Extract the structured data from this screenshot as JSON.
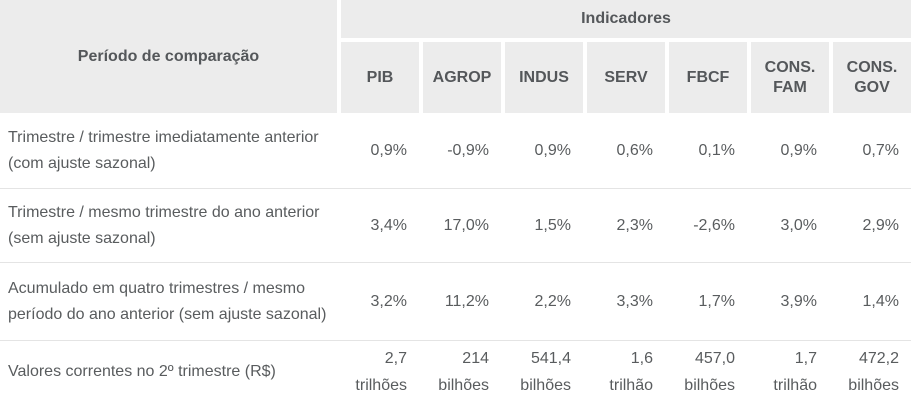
{
  "colors": {
    "header_bg": "#ececec",
    "header_text": "#54575a",
    "body_text": "#595c5e",
    "row_separator": "#e4e4e4",
    "background": "#ffffff"
  },
  "chart_data": {
    "type": "table",
    "title": "Indicadores",
    "row_header": "Período de comparação",
    "columns": [
      "PIB",
      "AGROP",
      "INDUS",
      "SERV",
      "FBCF",
      "CONS. FAM",
      "CONS. GOV"
    ],
    "rows": [
      {
        "label": "Trimestre / trimestre imediatamente anterior (com ajuste sazonal)",
        "values": [
          "0,9%",
          "-0,9%",
          "0,9%",
          "0,6%",
          "0,1%",
          "0,9%",
          "0,7%"
        ]
      },
      {
        "label": "Trimestre / mesmo trimestre do ano anterior (sem ajuste sazonal)",
        "values": [
          "3,4%",
          "17,0%",
          "1,5%",
          "2,3%",
          "-2,6%",
          "3,0%",
          "2,9%"
        ]
      },
      {
        "label": "Acumulado em quatro trimestres / mesmo período do ano anterior (sem ajuste sazonal)",
        "values": [
          "3,2%",
          "11,2%",
          "2,2%",
          "3,3%",
          "1,7%",
          "3,9%",
          "1,4%"
        ]
      },
      {
        "label": "Valores correntes no 2º trimestre (R$)",
        "values": [
          "2,7 trilhões",
          "214 bilhões",
          "541,4 bilhões",
          "1,6 trilhão",
          "457,0 bilhões",
          "1,7 trilhão",
          "472,2 bilhões"
        ]
      }
    ]
  }
}
